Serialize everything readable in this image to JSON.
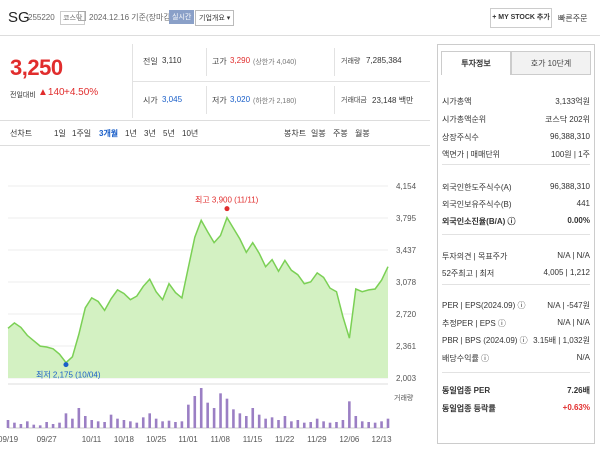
{
  "header": {
    "name": "SG",
    "code": "255220",
    "market": "코스닥",
    "date": "2024.12.16 기준(장마감)",
    "realtime_badge": "실시간",
    "corp_info": "기업개요 ▾",
    "mystock": "+ MY STOCK 추가",
    "quick_order": "빠른주문"
  },
  "price": {
    "current": "3,250",
    "change_label": "전일대비",
    "change_value": "▲140",
    "change_pct": "+4.50%"
  },
  "quote": {
    "prev_label": "전일",
    "prev": "3,110",
    "high_label": "고가",
    "high": "3,290",
    "upper_limit": "(상한가 4,040)",
    "volume_label": "거래량",
    "volume": "7,285,384",
    "open_label": "시가",
    "open": "3,045",
    "low_label": "저가",
    "low": "3,020",
    "lower_limit": "(하한가 2,180)",
    "value_label": "거래대금",
    "value": "23,148 백만"
  },
  "chart_tabs": {
    "line": "선차트",
    "d1": "1일",
    "w1": "1주일",
    "m3": "3개월",
    "y1": "1년",
    "y3": "3년",
    "y5": "5년",
    "y10": "10년",
    "candle": "봉차트",
    "daily": "일봉",
    "weekly": "주봉",
    "monthly": "월봉"
  },
  "chart_data": {
    "type": "area",
    "x": [
      "09/19",
      "09/20",
      "09/23",
      "09/24",
      "09/25",
      "09/26",
      "09/27",
      "09/30",
      "10/02",
      "10/04",
      "10/07",
      "10/08",
      "10/10",
      "10/11",
      "10/14",
      "10/15",
      "10/16",
      "10/17",
      "10/18",
      "10/21",
      "10/22",
      "10/23",
      "10/24",
      "10/25",
      "10/28",
      "10/29",
      "10/30",
      "10/31",
      "11/01",
      "11/04",
      "11/05",
      "11/06",
      "11/07",
      "11/08",
      "11/11",
      "11/12",
      "11/13",
      "11/14",
      "11/15",
      "11/18",
      "11/19",
      "11/20",
      "11/21",
      "11/22",
      "11/25",
      "11/26",
      "11/27",
      "11/28",
      "11/29",
      "12/02",
      "12/03",
      "12/04",
      "12/05",
      "12/06",
      "12/09",
      "12/10",
      "12/11",
      "12/12",
      "12/13",
      "12/16"
    ],
    "series": [
      {
        "values": [
          2560,
          2620,
          2570,
          2480,
          2420,
          2360,
          2350,
          2330,
          2270,
          2175,
          2240,
          2490,
          2790,
          2900,
          2860,
          2760,
          2890,
          2990,
          2950,
          2880,
          2920,
          3030,
          3110,
          2970,
          2880,
          3060,
          2960,
          2900,
          3240,
          3580,
          3770,
          3640,
          3520,
          3600,
          3800,
          3680,
          3560,
          3410,
          3520,
          3400,
          3250,
          3330,
          3200,
          3320,
          3210,
          3160,
          3060,
          3080,
          3180,
          3130,
          3010,
          2970,
          2690,
          2450,
          3000,
          2970,
          2990,
          3000,
          3100,
          3250
        ]
      }
    ],
    "volume": [
      12,
      8,
      6,
      10,
      5,
      4,
      9,
      6,
      8,
      22,
      14,
      30,
      18,
      12,
      10,
      9,
      20,
      14,
      12,
      10,
      8,
      16,
      22,
      14,
      10,
      11,
      9,
      10,
      35,
      48,
      60,
      38,
      30,
      52,
      44,
      28,
      22,
      18,
      30,
      20,
      14,
      16,
      12,
      18,
      10,
      12,
      8,
      9,
      14,
      10,
      8,
      9,
      12,
      40,
      18,
      10,
      9,
      8,
      10,
      14
    ],
    "xticks": [
      "09/19",
      "09/27",
      "10/11",
      "10/18",
      "10/25",
      "11/01",
      "11/08",
      "11/15",
      "11/22",
      "11/29",
      "12/06",
      "12/13"
    ],
    "yticks": [
      "4,154",
      "3,795",
      "3,437",
      "3,078",
      "2,720",
      "2,361",
      "2,003"
    ],
    "ylim": [
      2003,
      4154
    ],
    "max_label": "최고 3,900 (11/11)",
    "min_label": "최저 2,175 (10/04)",
    "volume_label": "거래량",
    "line_color": "#7bd055",
    "fill_color": "#d3f1c2",
    "volume_color": "#9b7fc4"
  },
  "side": {
    "tab_active": "투자정보",
    "tab_other": "호가 10단계",
    "rows": [
      {
        "k": "시가총액",
        "v": "3,133억원"
      },
      {
        "k": "시가총액순위",
        "v": "코스닥 202위"
      },
      {
        "k": "상장주식수",
        "v": "96,388,310"
      },
      {
        "k": "액면가 | 매매단위",
        "v": "100원 | 1주"
      },
      {
        "k": "외국인한도주식수(A)",
        "v": "96,388,310"
      },
      {
        "k": "외국인보유주식수(B)",
        "v": "441"
      },
      {
        "k": "외국인소진율(B/A) ⓘ",
        "v": "0.00%"
      },
      {
        "k": "투자의견 | 목표주가",
        "v": "N/A | N/A"
      },
      {
        "k": "52주최고 | 최저",
        "v": "4,005 | 1,212"
      },
      {
        "k": "PER | EPS(2024.09) ⓘ",
        "v": "N/A | -547원"
      },
      {
        "k": "추정PER | EPS ⓘ",
        "v": "N/A | N/A"
      },
      {
        "k": "PBR | BPS (2024.09) ⓘ",
        "v": "3.15배 | 1,032원"
      },
      {
        "k": "배당수익률 ⓘ",
        "v": "N/A"
      },
      {
        "k": "동일업종 PER",
        "v": "7.26배"
      },
      {
        "k": "동일업종 등락률",
        "v": "+0.63%"
      }
    ]
  }
}
